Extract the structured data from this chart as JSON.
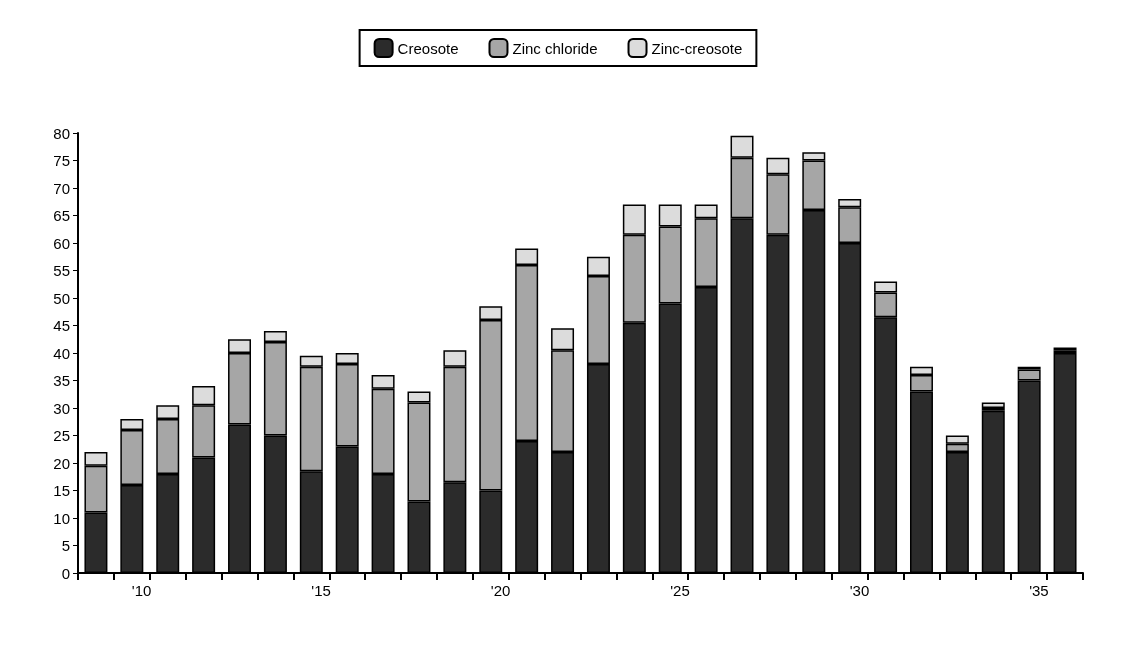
{
  "chart_data": {
    "type": "bar",
    "stacked": true,
    "categories": [
      null,
      "'10",
      null,
      null,
      null,
      null,
      "'15",
      null,
      null,
      null,
      null,
      "'20",
      null,
      null,
      null,
      null,
      "'25",
      null,
      null,
      null,
      null,
      "'30",
      null,
      null,
      null,
      null,
      "'35",
      null
    ],
    "series": [
      {
        "name": "Creosote",
        "color": "#2b2b2b",
        "values": [
          11,
          16,
          18,
          21,
          27,
          25,
          18.5,
          23,
          18,
          13,
          16.5,
          15,
          24,
          22,
          38,
          45.5,
          49,
          52,
          64.5,
          61.5,
          66,
          60,
          46.5,
          33,
          22,
          29.5,
          35,
          40
        ]
      },
      {
        "name": "Zinc chloride",
        "color": "#a6a6a6",
        "values": [
          8.5,
          10,
          10,
          9.5,
          13,
          17,
          19,
          15,
          15.5,
          18,
          21,
          31,
          32,
          18.5,
          16,
          16,
          14,
          12.5,
          11,
          11,
          9,
          6.5,
          4.5,
          3,
          1.5,
          0.5,
          2,
          0.5
        ]
      },
      {
        "name": "Zinc-creosote",
        "color": "#dcdcdc",
        "values": [
          2.5,
          2,
          2.5,
          3.5,
          2.5,
          2,
          2,
          2,
          2.5,
          2,
          3,
          2.5,
          3,
          4,
          3.5,
          5.5,
          4,
          2.5,
          4,
          3,
          1.5,
          1.5,
          2,
          1.5,
          1.5,
          1,
          0.5,
          0.5
        ]
      }
    ],
    "ylim": [
      0,
      80
    ],
    "yticks": [
      0,
      5,
      10,
      15,
      20,
      25,
      30,
      35,
      40,
      45,
      50,
      55,
      60,
      65,
      70,
      75,
      80
    ],
    "grid": false,
    "legend": "top"
  }
}
